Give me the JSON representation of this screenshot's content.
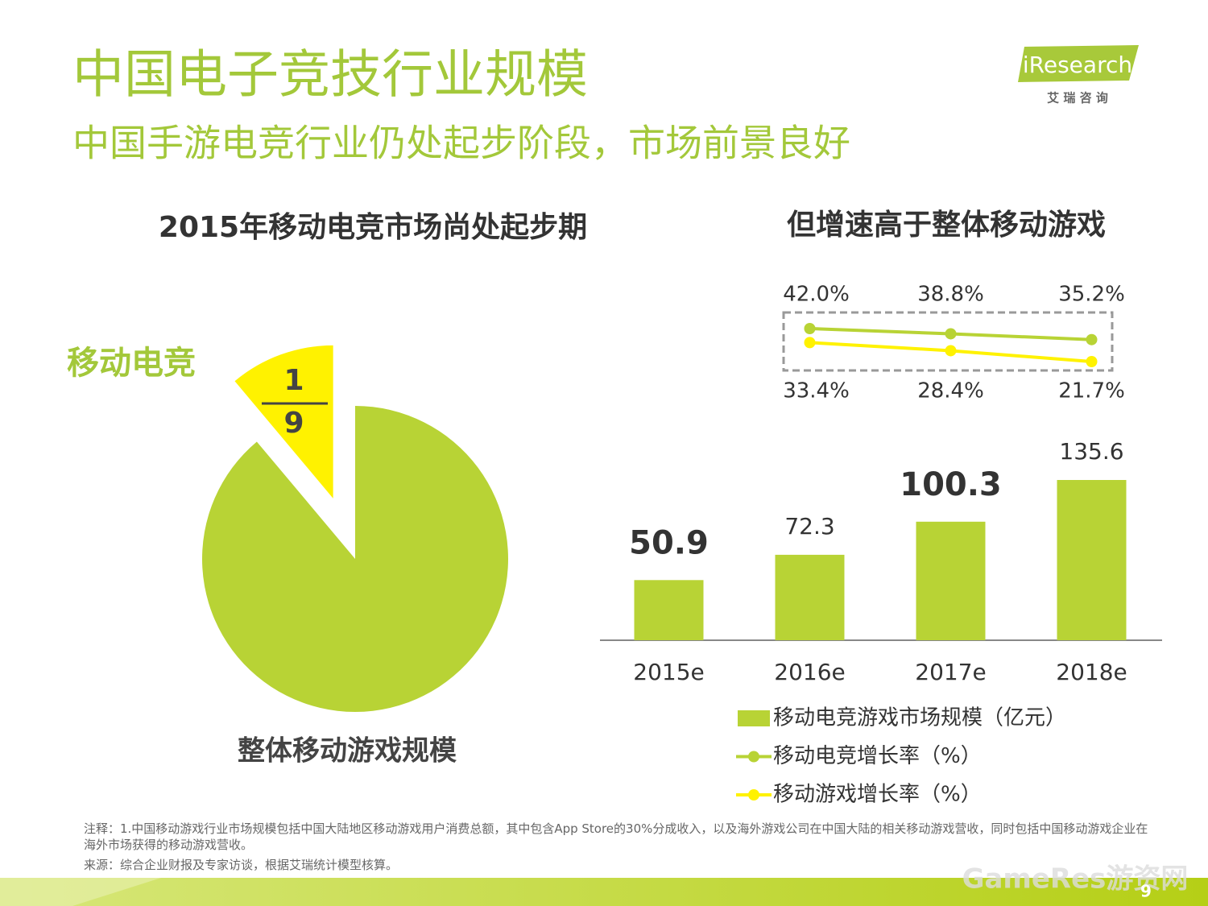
{
  "header": {
    "title": "中国电子竞技行业规模",
    "subtitle": "中国手游电竞行业仍处起步阶段，市场前景良好"
  },
  "logo": {
    "brand": "iResearch",
    "tagline": "艾 瑞 咨 询"
  },
  "chart_data": [
    {
      "type": "pie",
      "title": "2015年移动电竞市场尚处起步期",
      "categories": [
        "移动电竞",
        "整体移动游戏规模"
      ],
      "fraction": {
        "numerator": 1,
        "denominator": 9
      },
      "colors": [
        "#fff200",
        "#b8d335"
      ]
    },
    {
      "type": "bar-line",
      "title": "但增速高于整体移动游戏",
      "categories": [
        "2015e",
        "2016e",
        "2017e",
        "2018e"
      ],
      "series": [
        {
          "name": "移动电竞游戏市场规模（亿元）",
          "kind": "bar",
          "color": "#b8d335",
          "values": [
            50.9,
            72.3,
            100.3,
            135.6
          ],
          "bold_labels": [
            0,
            2
          ]
        },
        {
          "name": "移动电竞增长率（%）",
          "kind": "line",
          "color": "#b8d335",
          "values": [
            null,
            42.0,
            38.8,
            35.2
          ],
          "value_labels": [
            null,
            "42.0%",
            "38.8%",
            "35.2%"
          ]
        },
        {
          "name": "移动游戏增长率（%）",
          "kind": "line",
          "color": "#fff200",
          "values": [
            null,
            33.4,
            28.4,
            21.7
          ],
          "value_labels": [
            null,
            "33.4%",
            "28.4%",
            "21.7%"
          ]
        }
      ]
    }
  ],
  "footer": {
    "note": "注释：1.中国移动游戏行业市场规模包括中国大陆地区移动游戏用户消费总额，其中包含App Store的30%分成收入，以及海外游戏公司在中国大陆的相关移动游戏营收，同时包括中国移动游戏企业在海外市场获得的移动游戏营收。",
    "source": "来源：综合企业财报及专家访谈，根据艾瑞统计模型核算。",
    "page": "9",
    "watermark": "GameRes游资网"
  }
}
